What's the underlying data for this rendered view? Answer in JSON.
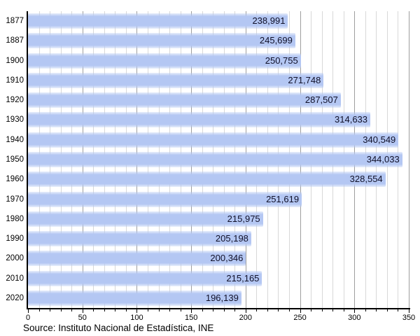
{
  "chart_data": {
    "type": "bar",
    "orientation": "horizontal",
    "title": "",
    "xlabel": "",
    "ylabel": "",
    "categories": [
      "1877",
      "1887",
      "1900",
      "1910",
      "1920",
      "1930",
      "1940",
      "1950",
      "1960",
      "1970",
      "1980",
      "1990",
      "2000",
      "2010",
      "2020"
    ],
    "values": [
      238991,
      245699,
      250755,
      271748,
      287507,
      314633,
      340549,
      344033,
      328554,
      251619,
      215975,
      205198,
      200346,
      215165,
      196139
    ],
    "value_labels": [
      "238,991",
      "245,699",
      "250,755",
      "271,748",
      "287,507",
      "314,633",
      "340,549",
      "344,033",
      "328,554",
      "251,619",
      "215,975",
      "205,198",
      "200,346",
      "215,165",
      "196,139"
    ],
    "xlim": [
      0,
      350000
    ],
    "x_tick_labels": [
      "0",
      "50",
      "100",
      "150",
      "200",
      "250",
      "300",
      "350"
    ],
    "x_major_tick_step_thousands": 50,
    "x_minor_tick_step_thousands": 10,
    "grid": true,
    "legend": false
  },
  "footer": {
    "source": "Source: Instituto Nacional de Estadística, INE"
  },
  "colors": {
    "bar_fill": "#b4c7f3",
    "grid_minor": "#d8d8d8",
    "grid_major": "#9e9e9e",
    "axis": "#000000",
    "value_text": "#101028",
    "tick_text": "#000000",
    "background": "#ffffff"
  }
}
